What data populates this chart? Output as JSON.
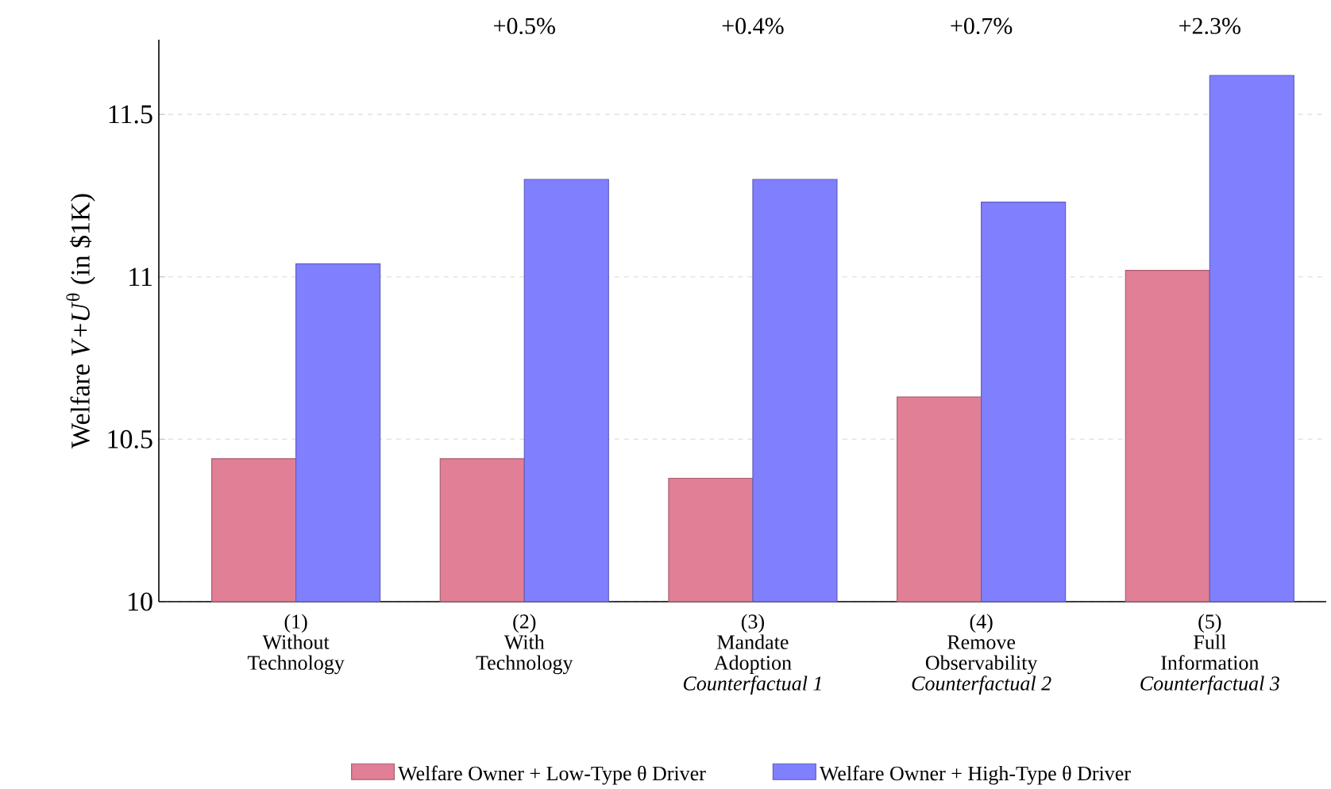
{
  "chart_data": {
    "type": "bar",
    "ylabel": "Welfare *V*+*U*$^{θ}$ (in $1K)",
    "categories": [
      "(1)\nWithout\nTechnology",
      "(2)\nWith\nTechnology",
      "(3)\nMandate\nAdoption\n*Counterfactual 1*",
      "(4)\nRemove\nObservability\n*Counterfactual 2*",
      "(5)\nFull\nInformation\n*Counterfactual 3*"
    ],
    "series": [
      {
        "name": "Welfare Owner + Low-Type θ Driver",
        "color": "#e07f96",
        "values": [
          10.44,
          10.44,
          10.38,
          10.63,
          11.02
        ]
      },
      {
        "name": "Welfare Owner + High-Type θ Driver",
        "color": "#8080ff",
        "values": [
          11.04,
          11.3,
          11.3,
          11.23,
          11.62
        ]
      }
    ],
    "annotations": [
      "+0.5%",
      "+0.4%",
      "+0.7%",
      "+2.3%"
    ],
    "ylim": [
      10,
      11.73
    ],
    "yticks": [
      10,
      10.5,
      11,
      11.5
    ],
    "grid": "y",
    "legend": "bottom"
  }
}
